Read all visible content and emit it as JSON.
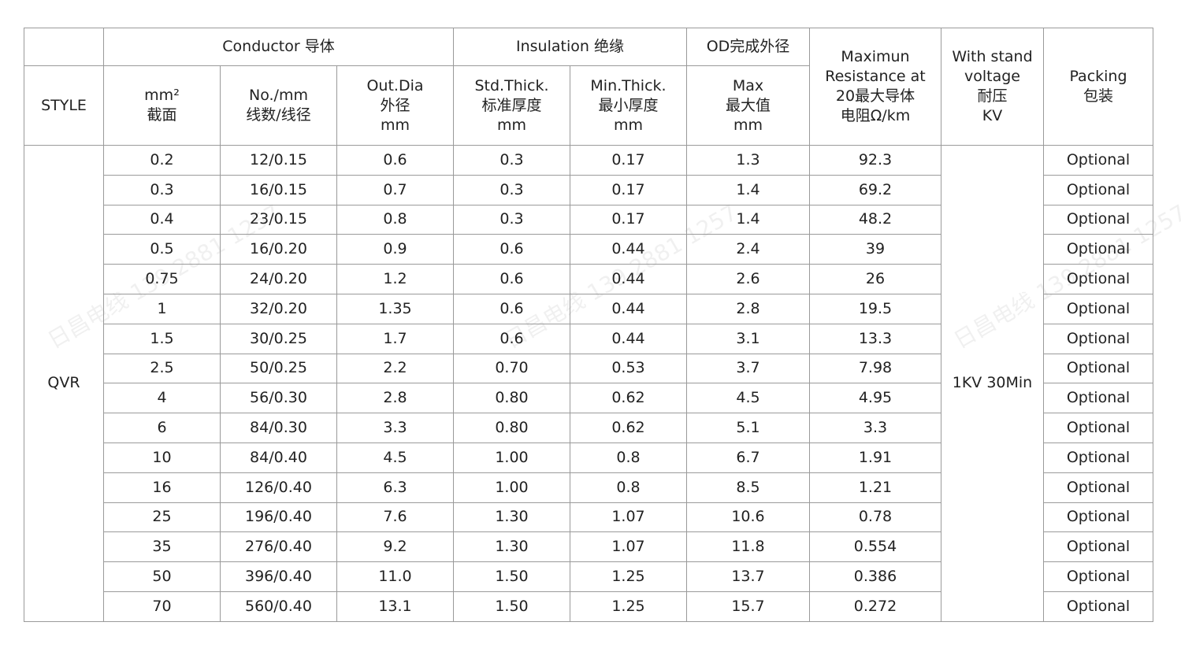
{
  "header": {
    "style": "STYLE",
    "conductor": "Conductor 导体",
    "insulation": "Insulation 绝缘",
    "od": "OD完成外径",
    "resistance": [
      "Maximun",
      "Resistance at",
      "20最大导体",
      "电阻Ω/km"
    ],
    "voltage": [
      "With stand",
      "voltage",
      "耐压",
      "KV"
    ],
    "packing": [
      "Packing",
      "包装"
    ],
    "area": [
      "mm²",
      "截面"
    ],
    "strands": [
      "No./mm",
      "线数/线径"
    ],
    "outdia": [
      "Out.Dia",
      "外径",
      "mm"
    ],
    "std_thick": [
      "Std.Thick.",
      "标准厚度",
      "mm"
    ],
    "min_thick": [
      "Min.Thick.",
      "最小厚度",
      "mm"
    ],
    "od_max": [
      "Max",
      "最大值",
      "mm"
    ]
  },
  "style_value": "QVR",
  "voltage_value": "1KV 30Min",
  "watermark": "日昌电线 139 2881 1257",
  "rows": [
    [
      "0.2",
      "12/0.15",
      "0.6",
      "0.3",
      "0.17",
      "1.3",
      "92.3",
      "Optional"
    ],
    [
      "0.3",
      "16/0.15",
      "0.7",
      "0.3",
      "0.17",
      "1.4",
      "69.2",
      "Optional"
    ],
    [
      "0.4",
      "23/0.15",
      "0.8",
      "0.3",
      "0.17",
      "1.4",
      "48.2",
      "Optional"
    ],
    [
      "0.5",
      "16/0.20",
      "0.9",
      "0.6",
      "0.44",
      "2.4",
      "39",
      "Optional"
    ],
    [
      "0.75",
      "24/0.20",
      "1.2",
      "0.6",
      "0.44",
      "2.6",
      "26",
      "Optional"
    ],
    [
      "1",
      "32/0.20",
      "1.35",
      "0.6",
      "0.44",
      "2.8",
      "19.5",
      "Optional"
    ],
    [
      "1.5",
      "30/0.25",
      "1.7",
      "0.6",
      "0.44",
      "3.1",
      "13.3",
      "Optional"
    ],
    [
      "2.5",
      "50/0.25",
      "2.2",
      "0.70",
      "0.53",
      "3.7",
      "7.98",
      "Optional"
    ],
    [
      "4",
      "56/0.30",
      "2.8",
      "0.80",
      "0.62",
      "4.5",
      "4.95",
      "Optional"
    ],
    [
      "6",
      "84/0.30",
      "3.3",
      "0.80",
      "0.62",
      "5.1",
      "3.3",
      "Optional"
    ],
    [
      "10",
      "84/0.40",
      "4.5",
      "1.00",
      "0.8",
      "6.7",
      "1.91",
      "Optional"
    ],
    [
      "16",
      "126/0.40",
      "6.3",
      "1.00",
      "0.8",
      "8.5",
      "1.21",
      "Optional"
    ],
    [
      "25",
      "196/0.40",
      "7.6",
      "1.30",
      "1.07",
      "10.6",
      "0.78",
      "Optional"
    ],
    [
      "35",
      "276/0.40",
      "9.2",
      "1.30",
      "1.07",
      "11.8",
      "0.554",
      "Optional"
    ],
    [
      "50",
      "396/0.40",
      "11.0",
      "1.50",
      "1.25",
      "13.7",
      "0.386",
      "Optional"
    ],
    [
      "70",
      "560/0.40",
      "13.1",
      "1.50",
      "1.25",
      "15.7",
      "0.272",
      "Optional"
    ]
  ]
}
